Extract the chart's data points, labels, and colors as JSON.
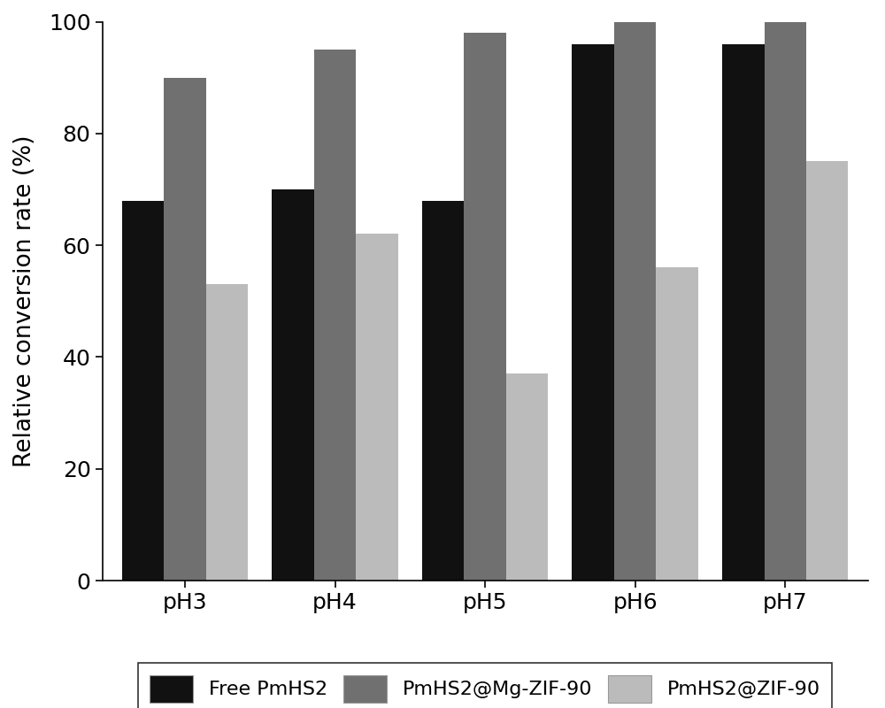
{
  "categories": [
    "pH3",
    "pH4",
    "pH5",
    "pH6",
    "pH7"
  ],
  "series": [
    {
      "label": "Free PmHS2",
      "color": "#111111",
      "values": [
        68,
        70,
        68,
        96,
        96
      ]
    },
    {
      "label": "PmHS2@Mg-ZIF-90",
      "color": "#707070",
      "values": [
        90,
        95,
        98,
        100,
        100
      ]
    },
    {
      "label": "PmHS2@ZIF-90",
      "color": "#bbbbbb",
      "values": [
        53,
        62,
        37,
        56,
        75
      ]
    }
  ],
  "ylabel": "Relative conversion rate (%)",
  "ylim": [
    0,
    100
  ],
  "yticks": [
    0,
    20,
    40,
    60,
    80,
    100
  ],
  "bar_width": 0.28,
  "figsize": [
    10,
    8
  ],
  "dpi": 100,
  "legend_ncol": 3,
  "spine_linewidth": 1.2,
  "tick_fontsize": 18,
  "label_fontsize": 19,
  "legend_fontsize": 16
}
